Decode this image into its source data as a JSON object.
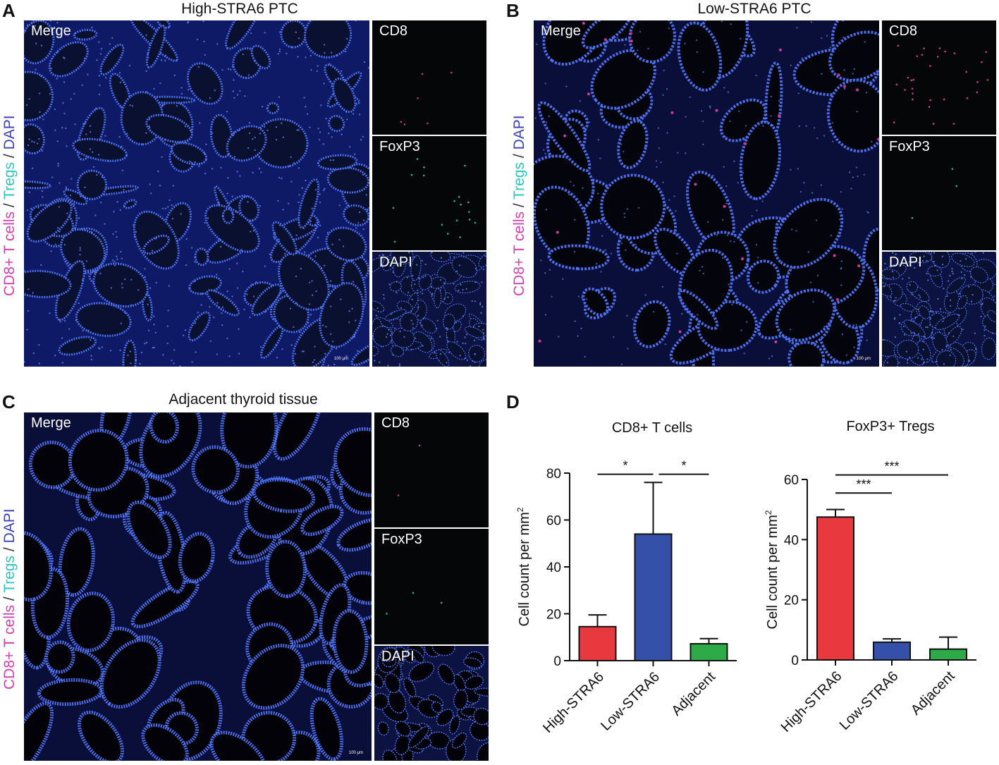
{
  "panels": {
    "A": {
      "letter": "A",
      "title": "High-STRA6 PTC",
      "merge": "Merge",
      "ch1": "CD8",
      "ch2": "FoxP3",
      "ch3": "DAPI",
      "scale": "100 μm"
    },
    "B": {
      "letter": "B",
      "title": "Low-STRA6 PTC",
      "merge": "Merge",
      "ch1": "CD8",
      "ch2": "FoxP3",
      "ch3": "DAPI",
      "scale": "100 μm"
    },
    "C": {
      "letter": "C",
      "title": "Adjacent thyroid tissue",
      "merge": "Merge",
      "ch1": "CD8",
      "ch2": "FoxP3",
      "ch3": "DAPI",
      "scale": "100 μm"
    },
    "D": {
      "letter": "D"
    }
  },
  "side_label": {
    "part1": "CD8+ T cells",
    "sep1": " / ",
    "part2": "Tregs",
    "sep2": " / ",
    "part3": "DAPI"
  },
  "colors": {
    "cd8": "#d63fb0",
    "tregs": "#2ec4c0",
    "dapi": "#3b3fb8",
    "high": "#e8393f",
    "low": "#3450a8",
    "adjacent": "#2eaa48"
  },
  "chart_data": [
    {
      "type": "bar",
      "title": "CD8+ T cells",
      "ylabel": "Cell count per mm",
      "ylabel_sup": "2",
      "categories": [
        "High-STRA6",
        "Low-STRA6",
        "Adjacent"
      ],
      "values": [
        14.5,
        54,
        7.2
      ],
      "errors": [
        5,
        22,
        2.2
      ],
      "ylim": [
        0,
        80
      ],
      "yticks": [
        0,
        20,
        40,
        60,
        80
      ],
      "significance": [
        {
          "from": 0,
          "to": 1,
          "label": "*",
          "y": 79.5
        },
        {
          "from": 1,
          "to": 2,
          "label": "*",
          "y": 79.5
        }
      ]
    },
    {
      "type": "bar",
      "title": "FoxP3+ Tregs",
      "ylabel": "Cell count per mm",
      "ylabel_sup": "2",
      "categories": [
        "High-STRA6",
        "Low-STRA6",
        "Adjacent"
      ],
      "values": [
        47.5,
        5.9,
        3.6
      ],
      "errors": [
        2.5,
        1.1,
        4
      ],
      "ylim": [
        0,
        60
      ],
      "yticks": [
        0,
        20,
        40,
        60
      ],
      "significance": [
        {
          "from": 0,
          "to": 1,
          "label": "***",
          "y": 55.5
        },
        {
          "from": 0,
          "to": 2,
          "label": "***",
          "y": 61.5
        }
      ]
    }
  ]
}
